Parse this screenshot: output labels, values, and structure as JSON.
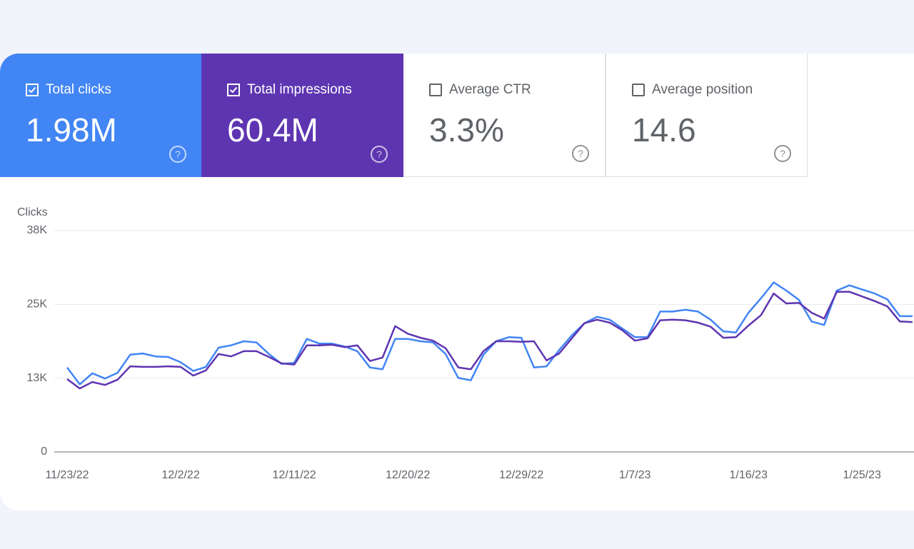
{
  "chart_data": {
    "type": "line",
    "y_label": "Clicks",
    "categories": [
      "11/23/22",
      null,
      null,
      null,
      null,
      null,
      null,
      null,
      null,
      "12/2/22",
      null,
      null,
      null,
      null,
      null,
      null,
      null,
      null,
      "12/11/22",
      null,
      null,
      null,
      null,
      null,
      null,
      null,
      null,
      "12/20/22",
      null,
      null,
      null,
      null,
      null,
      null,
      null,
      null,
      "12/29/22",
      null,
      null,
      null,
      null,
      null,
      null,
      null,
      null,
      "1/7/23",
      null,
      null,
      null,
      null,
      null,
      null,
      null,
      null,
      "1/16/23",
      null,
      null,
      null,
      null,
      null,
      null,
      null,
      null,
      "1/25/23",
      null,
      null,
      null,
      null
    ],
    "ylim": [
      0,
      38000
    ],
    "yticks": [
      0,
      {
        "value": 12667,
        "label": "13K"
      },
      {
        "value": 25333,
        "label": "25K"
      },
      {
        "value": 38000,
        "label": "38K"
      }
    ],
    "grid": true,
    "series": [
      {
        "name": "Total clicks",
        "total": "1.98M",
        "color": "#4285f4",
        "values": [
          14500,
          11600,
          13500,
          12600,
          13600,
          16700,
          16900,
          16400,
          16300,
          15400,
          13900,
          14600,
          17900,
          18300,
          19000,
          18800,
          16800,
          15100,
          15300,
          19400,
          18600,
          18600,
          18100,
          17300,
          14500,
          14200,
          19400,
          19400,
          19000,
          18800,
          16800,
          12700,
          12300,
          16700,
          19000,
          19700,
          19600,
          14500,
          14700,
          17500,
          20000,
          22100,
          23200,
          22700,
          21200,
          19700,
          19700,
          24100,
          24100,
          24400,
          24100,
          22700,
          20700,
          20500,
          23900,
          26400,
          29100,
          27700,
          26100,
          22400,
          21800,
          27700,
          28600,
          27900,
          27200,
          26200,
          23300,
          23300
        ]
      },
      {
        "name": "Total impressions",
        "total": "60.4M",
        "color": "#5e35b1",
        "values": [
          12500,
          10900,
          12000,
          11500,
          12400,
          14700,
          14600,
          14600,
          14700,
          14600,
          13100,
          14000,
          16800,
          16400,
          17300,
          17300,
          16300,
          15200,
          15000,
          18300,
          18300,
          18400,
          18000,
          18300,
          15600,
          16200,
          21600,
          20300,
          19600,
          19100,
          17800,
          14500,
          14200,
          17300,
          19000,
          19000,
          18900,
          19000,
          15700,
          16900,
          19500,
          22100,
          22700,
          22200,
          20900,
          19100,
          19500,
          22600,
          22700,
          22600,
          22200,
          21500,
          19600,
          19700,
          21700,
          23500,
          27200,
          25500,
          25600,
          23900,
          22900,
          27500,
          27500,
          26700,
          25900,
          25000,
          22400,
          22300
        ]
      }
    ]
  },
  "metrics": [
    {
      "name": "Average CTR",
      "total": "3.3%"
    },
    {
      "name": "Average position",
      "total": "14.6"
    }
  ]
}
